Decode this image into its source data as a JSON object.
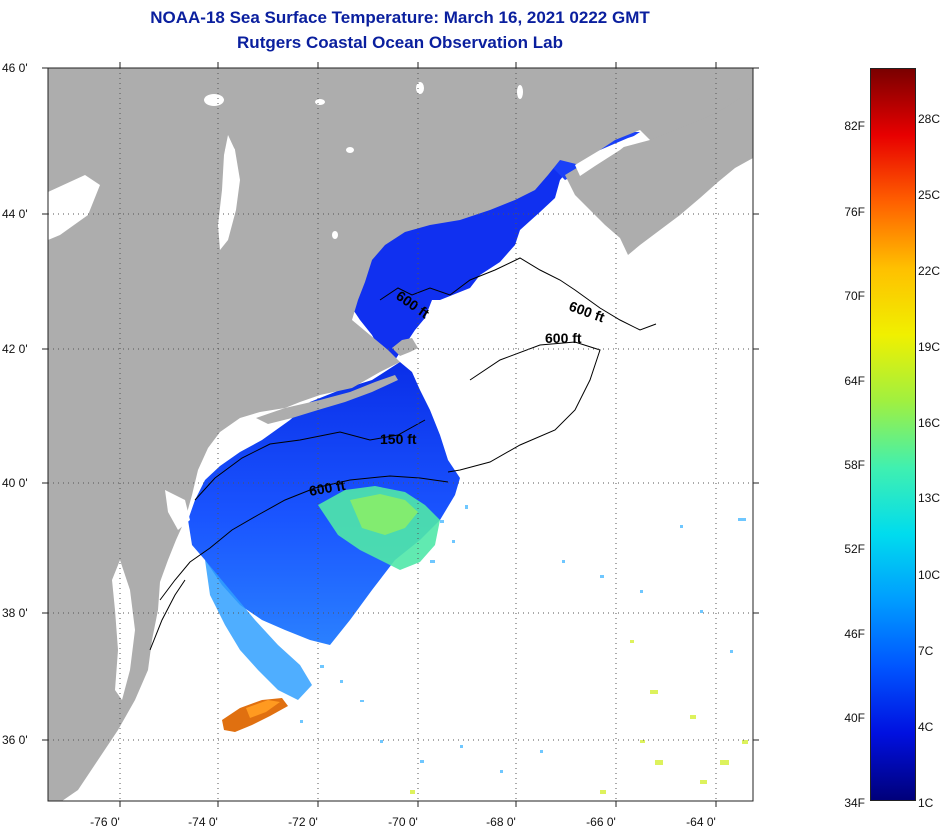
{
  "title": {
    "line1": "NOAA-18 Sea Surface Temperature:  March 16, 2021 0222 GMT",
    "line2": "Rutgers Coastal Ocean Observation Lab"
  },
  "map": {
    "lat_labels": [
      "46 0'",
      "44 0'",
      "42 0'",
      "40 0'",
      "38 0'",
      "36 0'"
    ],
    "lon_labels": [
      "-76 0'",
      "-74 0'",
      "-72 0'",
      "-70 0'",
      "-68 0'",
      "-66 0'",
      "-64 0'"
    ],
    "contours": [
      "600 ft",
      "600 ft",
      "600 ft",
      "150 ft",
      "600 ft"
    ],
    "colors": {
      "land": "#adadad",
      "ocean": "#ffffff",
      "grid": "#555555"
    }
  },
  "colorbar": {
    "fahrenheit": [
      "82F",
      "76F",
      "70F",
      "64F",
      "58F",
      "52F",
      "46F",
      "40F",
      "34F"
    ],
    "celsius": [
      "28C",
      "25C",
      "22C",
      "19C",
      "16C",
      "13C",
      "10C",
      "7C",
      "4C",
      "1C"
    ],
    "stops": [
      "#00007a",
      "#0010e0",
      "#0055ff",
      "#009cff",
      "#00dcee",
      "#40f0b0",
      "#a0f040",
      "#f0f000",
      "#ffc000",
      "#ff6000",
      "#e80000",
      "#7a0000"
    ]
  }
}
